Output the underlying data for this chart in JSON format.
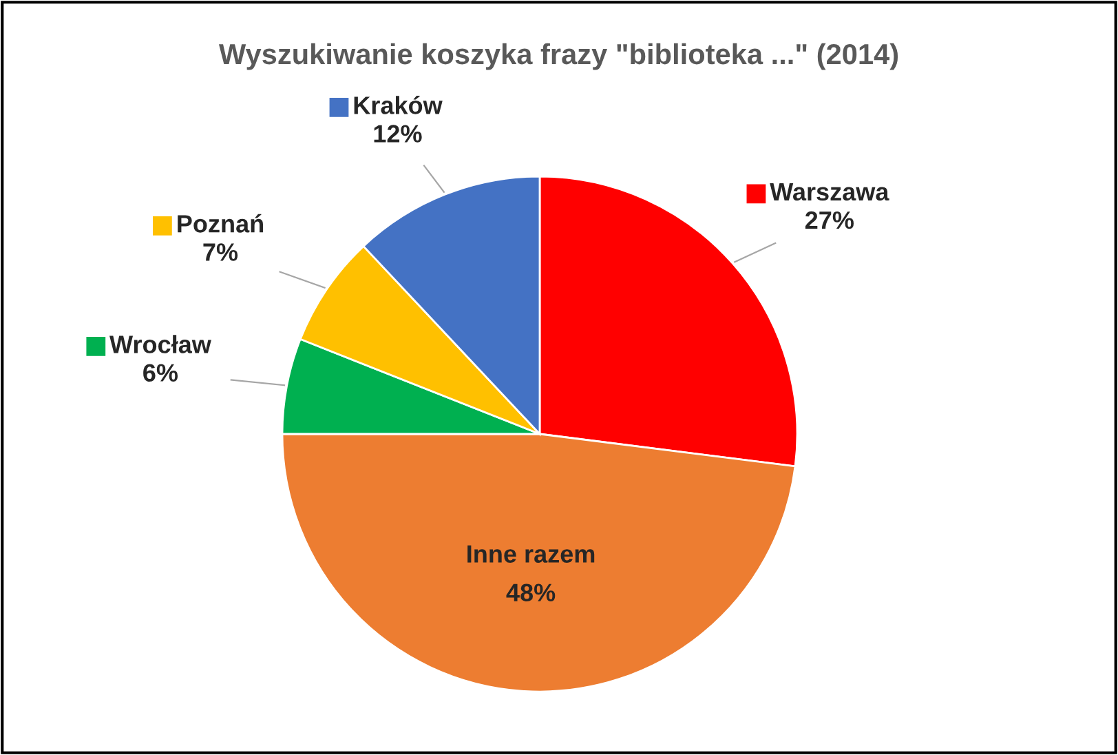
{
  "chart_data": {
    "type": "pie",
    "title": "Wyszukiwanie koszyka frazy \"biblioteka ...\" (2014)",
    "categories": [
      "Warszawa",
      "Inne razem",
      "Wrocław",
      "Poznań",
      "Kraków"
    ],
    "values": [
      27,
      48,
      6,
      7,
      12
    ],
    "value_labels": [
      "27%",
      "48%",
      "6%",
      "7%",
      "12%"
    ],
    "colors": [
      "#ff0000",
      "#ed7d31",
      "#00b050",
      "#ffc000",
      "#4472c4"
    ],
    "legend": "top"
  }
}
